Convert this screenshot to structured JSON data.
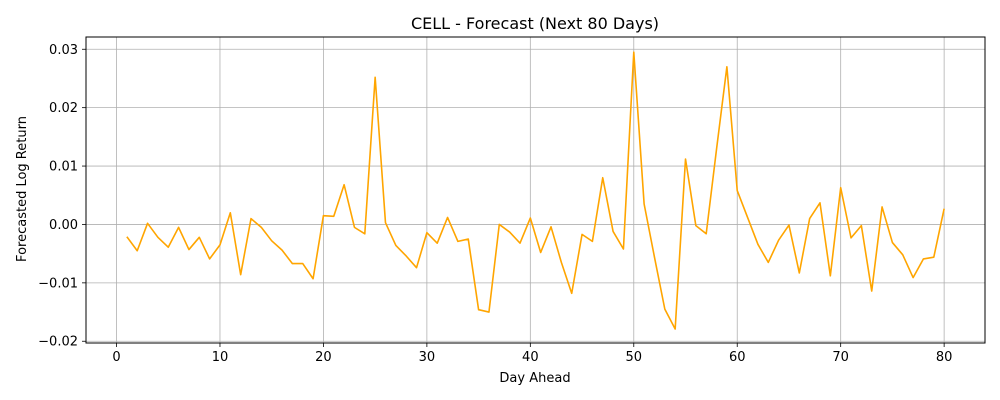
{
  "chart_data": {
    "type": "line",
    "title": "CELL - Forecast (Next 80 Days)",
    "xlabel": "Day Ahead",
    "ylabel": "Forecasted Log Return",
    "xlim": [
      -2.95,
      83.95
    ],
    "ylim": [
      -0.0203,
      0.0321
    ],
    "xticks": [
      0,
      10,
      20,
      30,
      40,
      50,
      60,
      70,
      80
    ],
    "yticks": [
      -0.02,
      -0.01,
      0.0,
      0.01,
      0.02,
      0.03
    ],
    "ytick_labels": [
      "−0.02",
      "−0.01",
      "0.00",
      "0.01",
      "0.02",
      "0.03"
    ],
    "grid": true,
    "line_color": "#ffa500",
    "x": [
      1,
      2,
      3,
      4,
      5,
      6,
      7,
      8,
      9,
      10,
      11,
      12,
      13,
      14,
      15,
      16,
      17,
      18,
      19,
      20,
      21,
      22,
      23,
      24,
      25,
      26,
      27,
      28,
      29,
      30,
      31,
      32,
      33,
      34,
      35,
      36,
      37,
      38,
      39,
      40,
      41,
      42,
      43,
      44,
      45,
      46,
      47,
      48,
      49,
      50,
      51,
      52,
      53,
      54,
      55,
      56,
      57,
      58,
      59,
      60,
      61,
      62,
      63,
      64,
      65,
      66,
      67,
      68,
      69,
      70,
      71,
      72,
      73,
      74,
      75,
      76,
      77,
      78,
      79,
      80
    ],
    "values": [
      -0.0021,
      -0.0045,
      0.0002,
      -0.0022,
      -0.0039,
      -0.0005,
      -0.0043,
      -0.0022,
      -0.0059,
      -0.0035,
      0.002,
      -0.0086,
      0.001,
      -0.0005,
      -0.0028,
      -0.0044,
      -0.0067,
      -0.0067,
      -0.0093,
      0.0015,
      0.0014,
      0.0068,
      -0.0005,
      -0.0016,
      0.0252,
      0.0003,
      -0.0036,
      -0.0054,
      -0.0074,
      -0.0014,
      -0.0032,
      0.0012,
      -0.0029,
      -0.0025,
      -0.0146,
      -0.015,
      0.0,
      -0.0013,
      -0.0032,
      0.0011,
      -0.0048,
      -0.0004,
      -0.0065,
      -0.0118,
      -0.0017,
      -0.0029,
      0.008,
      -0.0012,
      -0.0042,
      0.0295,
      0.0035,
      -0.0056,
      -0.0145,
      -0.0179,
      0.0112,
      -0.0002,
      -0.0016,
      0.0129,
      0.027,
      0.0058,
      0.0012,
      -0.0034,
      -0.0065,
      -0.0027,
      -0.0001,
      -0.0083,
      0.001,
      0.0037,
      -0.0088,
      0.0063,
      -0.0023,
      -0.0002,
      -0.0114,
      0.003,
      -0.0031,
      -0.0052,
      -0.0091,
      -0.0059,
      -0.0056,
      0.0027
    ]
  }
}
